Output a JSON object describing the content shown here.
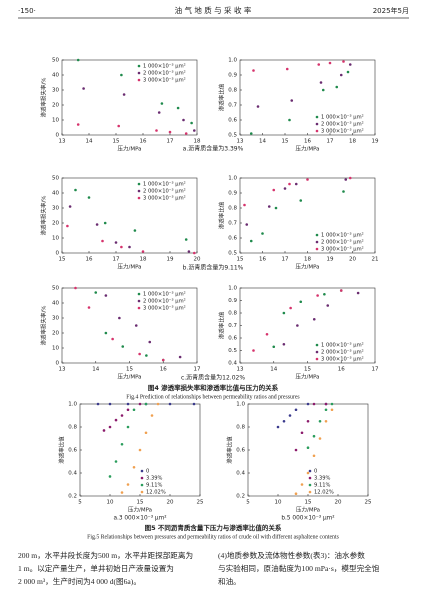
{
  "header": {
    "page": "·150·",
    "journal": "油 气 地 质 与 采 收 率",
    "date": "2025年5月"
  },
  "chart_data": [
    {
      "type": "scatter",
      "xlabel": "压力/MPa",
      "ylabel": "渗透率损失率/%",
      "xlim": [
        13,
        18
      ],
      "xticks": [
        13,
        14,
        15,
        16,
        17,
        18
      ],
      "ylim": [
        0,
        50
      ],
      "yticks": [
        0,
        10,
        20,
        30,
        40,
        50
      ],
      "legend": "upper right",
      "series": [
        {
          "name": "1 000×10⁻³ μm²",
          "color": "#1f8a4c",
          "x": [
            13.6,
            15.2,
            16.7,
            17.3,
            17.8
          ],
          "values": [
            50,
            40,
            21,
            18,
            8
          ]
        },
        {
          "name": "2 000×10⁻³ μm²",
          "color": "#6a2c70",
          "x": [
            13.8,
            15.3,
            16.6,
            17.5,
            17.9
          ],
          "values": [
            31,
            27,
            15,
            10,
            3
          ]
        },
        {
          "name": "3 000×10⁻³ μm²",
          "color": "#d6336c",
          "x": [
            13.6,
            15.1,
            16.5,
            17,
            17.6
          ],
          "values": [
            7,
            6,
            3,
            2,
            1
          ]
        }
      ]
    },
    {
      "type": "scatter",
      "xlabel": "压力/MPa",
      "ylabel": "渗透率比值",
      "xlim": [
        13,
        19
      ],
      "xticks": [
        13,
        14,
        15,
        16,
        17,
        18,
        19
      ],
      "ylim": [
        0.5,
        1
      ],
      "yticks": [
        0.5,
        0.6,
        0.7,
        0.8,
        0.9,
        {
          "value": 1,
          "label": "1.0"
        }
      ],
      "legend": "lower right",
      "series": [
        {
          "name": "1 000×10⁻³ μm²",
          "color": "#1f8a4c",
          "x": [
            13.5,
            15.2,
            16.7,
            17.3,
            17.8
          ],
          "values": [
            0.51,
            0.6,
            0.8,
            0.82,
            0.92
          ]
        },
        {
          "name": "2 000×10⁻³ μm²",
          "color": "#6a2c70",
          "x": [
            13.8,
            15.3,
            16.6,
            17.5,
            17.9
          ],
          "values": [
            0.69,
            0.73,
            0.85,
            0.9,
            0.97
          ]
        },
        {
          "name": "3 000×10⁻³ μm²",
          "color": "#d6336c",
          "x": [
            13.6,
            15.1,
            16.5,
            17,
            17.6
          ],
          "values": [
            0.93,
            0.94,
            0.97,
            0.98,
            0.99
          ]
        }
      ]
    },
    {
      "type": "scatter",
      "xlabel": "压力/MPa",
      "ylabel": "渗透率损失率/%",
      "xlim": [
        15,
        20
      ],
      "xticks": [
        15,
        16,
        17,
        18,
        19,
        20
      ],
      "ylim": [
        0,
        50
      ],
      "yticks": [
        0,
        10,
        20,
        30,
        40,
        50
      ],
      "legend": "upper right",
      "series": [
        {
          "name": "1 000×10⁻³ μm²",
          "color": "#1f8a4c",
          "x": [
            15.5,
            16,
            16.6,
            17.7,
            19.6
          ],
          "values": [
            42,
            37,
            20,
            15,
            9
          ]
        },
        {
          "name": "2 000×10⁻³ μm²",
          "color": "#6a2c70",
          "x": [
            15.3,
            16.3,
            17,
            17.5,
            19.7
          ],
          "values": [
            31,
            19,
            7,
            4,
            1
          ]
        },
        {
          "name": "3 000×10⁻³ μm²",
          "color": "#d6336c",
          "x": [
            15.2,
            16.5,
            17.2,
            18,
            19.9
          ],
          "values": [
            18,
            8,
            4,
            1,
            0
          ]
        }
      ]
    },
    {
      "type": "scatter",
      "xlabel": "压力/MPa",
      "ylabel": "渗透率比值",
      "xlim": [
        15,
        21
      ],
      "xticks": [
        15,
        16,
        17,
        18,
        19,
        20,
        21
      ],
      "ylim": [
        0.5,
        1
      ],
      "yticks": [
        0.5,
        0.6,
        0.7,
        0.8,
        0.9,
        {
          "value": 1,
          "label": "1.0"
        }
      ],
      "legend": "lower right",
      "series": [
        {
          "name": "1 000×10⁻³ μm²",
          "color": "#1f8a4c",
          "x": [
            15.5,
            16,
            16.6,
            17.7,
            19.6
          ],
          "values": [
            0.58,
            0.63,
            0.8,
            0.85,
            0.91
          ]
        },
        {
          "name": "2 000×10⁻³ μm²",
          "color": "#6a2c70",
          "x": [
            15.3,
            16.3,
            17,
            17.5,
            19.7
          ],
          "values": [
            0.69,
            0.81,
            0.93,
            0.96,
            0.99
          ]
        },
        {
          "name": "3 000×10⁻³ μm²",
          "color": "#d6336c",
          "x": [
            15.2,
            16.5,
            17.2,
            18,
            19.9
          ],
          "values": [
            0.82,
            0.92,
            0.96,
            0.99,
            1
          ]
        }
      ]
    },
    {
      "type": "scatter",
      "xlabel": "压力/MPa",
      "ylabel": "渗透率损失率/%",
      "xlim": [
        13,
        17
      ],
      "xticks": [
        13,
        14,
        15,
        16,
        17
      ],
      "ylim": [
        0,
        50
      ],
      "yticks": [
        0,
        10,
        20,
        30,
        40,
        50
      ],
      "legend": "upper right",
      "series": [
        {
          "name": "1 000×10⁻³ μm²",
          "color": "#1f8a4c",
          "x": [
            14,
            14.3,
            14.8,
            15.5,
            16
          ],
          "values": [
            47,
            20,
            11,
            5,
            2
          ]
        },
        {
          "name": "2 000×10⁻³ μm²",
          "color": "#6a2c70",
          "x": [
            14.3,
            14.7,
            15.2,
            15.6,
            16.5
          ],
          "values": [
            45,
            30,
            25,
            14,
            4
          ]
        },
        {
          "name": "3 000×10⁻³ μm²",
          "color": "#d6336c",
          "x": [
            13.4,
            13.8,
            14.5,
            15.3,
            16
          ],
          "values": [
            50,
            37,
            16,
            6,
            2
          ]
        }
      ]
    },
    {
      "type": "scatter",
      "xlabel": "压力/MPa",
      "ylabel": "渗透率比值",
      "xlim": [
        13,
        17
      ],
      "xticks": [
        13,
        14,
        15,
        16,
        17
      ],
      "ylim": [
        0.4,
        1
      ],
      "yticks": [
        0.4,
        0.5,
        0.6,
        0.7,
        0.8,
        0.9,
        {
          "value": 1,
          "label": "1.0"
        }
      ],
      "legend": "lower right",
      "series": [
        {
          "name": "1 000×10⁻³ μm²",
          "color": "#1f8a4c",
          "x": [
            14,
            14.3,
            14.8,
            15.5,
            16
          ],
          "values": [
            0.53,
            0.8,
            0.89,
            0.95,
            0.98
          ]
        },
        {
          "name": "2 000×10⁻³ μm²",
          "color": "#6a2c70",
          "x": [
            14.3,
            14.7,
            15.2,
            15.6,
            16.5
          ],
          "values": [
            0.55,
            0.7,
            0.75,
            0.86,
            0.96
          ]
        },
        {
          "name": "3 000×10⁻³ μm²",
          "color": "#d6336c",
          "x": [
            13.4,
            13.8,
            14.5,
            15.3,
            16
          ],
          "values": [
            0.5,
            0.63,
            0.84,
            0.94,
            0.98
          ]
        }
      ]
    },
    {
      "type": "scatter",
      "xlabel": "压力/MPa",
      "ylabel": "渗透率比值",
      "xlim": [
        5,
        25
      ],
      "xticks": [
        5,
        10,
        15,
        20,
        25
      ],
      "ylim": [
        0.2,
        1
      ],
      "yticks": [
        0.2,
        0.4,
        0.6,
        0.8,
        {
          "value": 1,
          "label": "1.0"
        }
      ],
      "legend": "lower right",
      "subtitle": "a.3 000×10⁻³ μm²",
      "series": [
        {
          "name": "0",
          "color": "#3a3a8c",
          "x": [
            8,
            10,
            13,
            16,
            20,
            24
          ],
          "values": [
            1,
            1,
            1,
            1,
            1,
            1
          ]
        },
        {
          "name": "3.39%",
          "color": "#8b1a6b",
          "x": [
            9,
            10,
            11,
            12,
            13,
            15
          ],
          "values": [
            0.77,
            0.8,
            0.86,
            0.9,
            0.95,
            1
          ]
        },
        {
          "name": "9.11%",
          "color": "#2a9d5c",
          "x": [
            10,
            11,
            12,
            13,
            14,
            16
          ],
          "values": [
            0.37,
            0.5,
            0.65,
            0.8,
            0.95,
            1
          ]
        },
        {
          "name": "12.02%",
          "color": "#f0a050",
          "x": [
            12,
            13,
            14,
            15,
            16,
            17,
            18
          ],
          "values": [
            0.23,
            0.3,
            0.45,
            0.6,
            0.75,
            0.9,
            1
          ]
        }
      ]
    },
    {
      "type": "scatter",
      "xlabel": "压力/MPa",
      "ylabel": "渗透率比值",
      "xlim": [
        5,
        25
      ],
      "xticks": [
        5,
        10,
        15,
        20,
        25
      ],
      "ylim": [
        0.2,
        1
      ],
      "yticks": [
        0.2,
        0.4,
        0.6,
        0.8,
        {
          "value": 1,
          "label": "1.0"
        }
      ],
      "legend": "lower right",
      "subtitle": "b.5 000×10⁻³ μm²",
      "series": [
        {
          "name": "0",
          "color": "#3a3a8c",
          "x": [
            10,
            11,
            12,
            13,
            15,
            18
          ],
          "values": [
            0.8,
            0.85,
            0.9,
            0.95,
            1,
            1
          ]
        },
        {
          "name": "3.39%",
          "color": "#8b1a6b",
          "x": [
            13,
            14,
            15,
            16,
            18
          ],
          "values": [
            0.6,
            0.75,
            0.85,
            1,
            1
          ]
        },
        {
          "name": "9.11%",
          "color": "#2a9d5c",
          "x": [
            15,
            16,
            17,
            18,
            19
          ],
          "values": [
            0.62,
            0.72,
            0.85,
            0.95,
            1
          ]
        },
        {
          "name": "12.02%",
          "color": "#f0a050",
          "x": [
            13,
            14,
            15,
            16,
            17,
            18,
            19
          ],
          "values": [
            0.22,
            0.3,
            0.4,
            0.55,
            0.7,
            0.85,
            0.95
          ]
        }
      ]
    }
  ],
  "subcaptions": [
    "a.沥青质含量为3.39%",
    "b.沥青质含量为9.11%",
    "c.沥青质含量为12.02%"
  ],
  "fig4": {
    "title": "图4  渗透率损失率和渗透率比值与压力的关系",
    "title_en": "Fig.4    Prediction of relationships between permeability ratios and pressures"
  },
  "fig5": {
    "title": "图5  不同沥青质含量下压力与渗透率比值的关系",
    "title_en": "Fig.5    Relationships between pressures and permeability ratios of crude oil with different asphaltene contents"
  },
  "body": {
    "left": [
      "200 m，水平井段长度为500 m，水平井距探部距离为",
      "1 m。以定产量生产，单井初始日产液量设置为",
      "2 000 m³，生产时间为4 000 d(图6a)。"
    ],
    "right": [
      "(4)地质参数及流体物性参数(表3)：油水参数",
      "与实验相同，原油黏度为100 mPa·s，模型完全饱",
      "和油。"
    ]
  }
}
